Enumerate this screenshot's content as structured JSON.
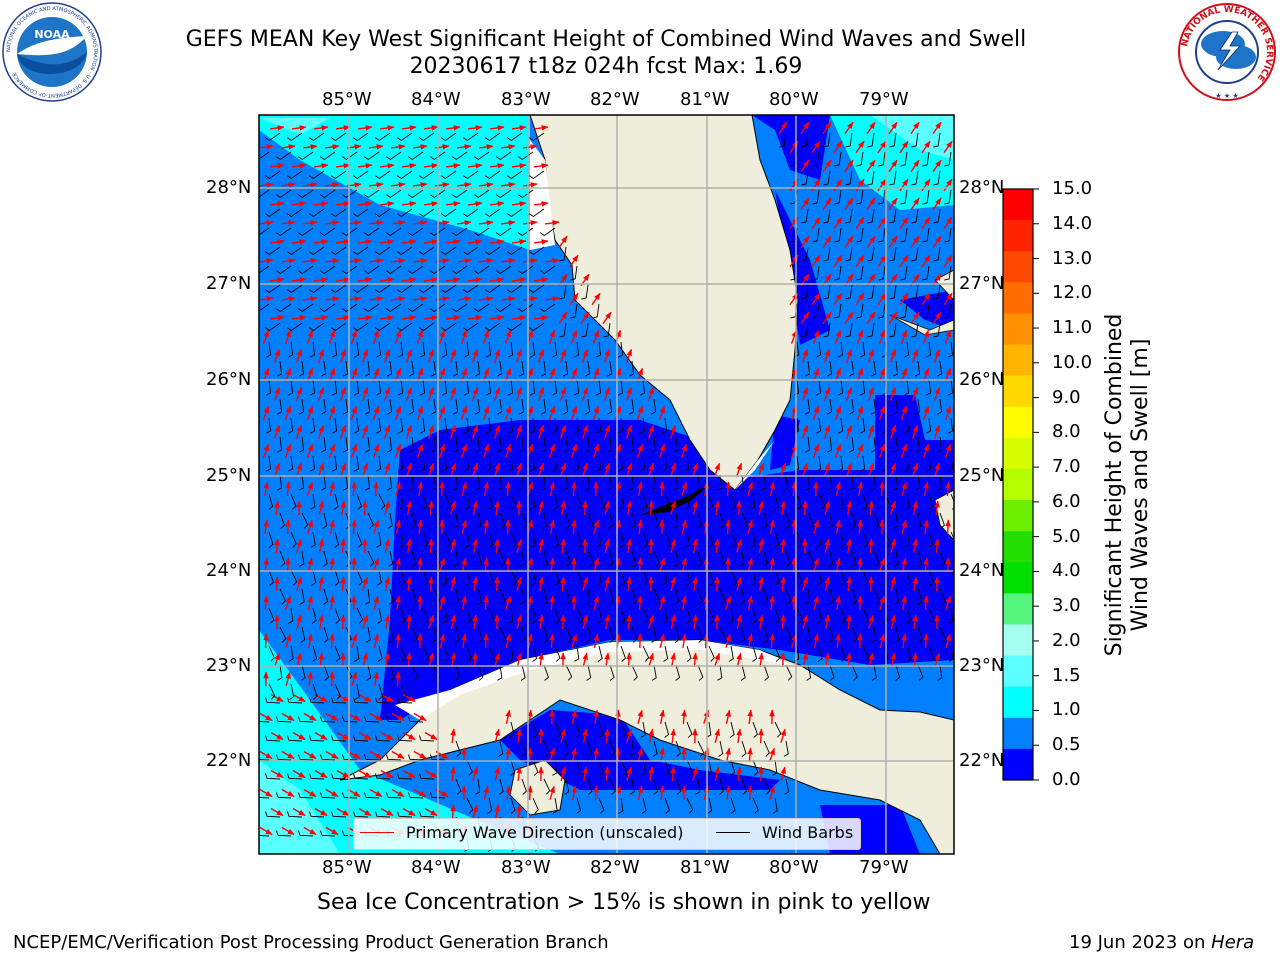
{
  "title_line1": "GEFS MEAN Key West Significant Height of Combined Wind Waves and Swell",
  "title_line2": "20230617 t18z 024h fcst   Max: 1.69",
  "logos": {
    "left": {
      "text": "NOAA",
      "ring": "NATIONAL OCEANIC AND ATMOSPHERIC ADMINISTRATION · U.S. DEPARTMENT OF COMMERCE"
    },
    "right": {
      "ring": "NATIONAL WEATHER SERVICE"
    }
  },
  "map": {
    "lon_labels": [
      "85°W",
      "84°W",
      "83°W",
      "82°W",
      "81°W",
      "80°W",
      "79°W"
    ],
    "lat_labels": [
      "28°N",
      "27°N",
      "26°N",
      "25°N",
      "24°N",
      "23°N",
      "22°N"
    ],
    "colors": {
      "land": "#efeedc",
      "grid": "#b0b0b0",
      "wave_arrow": "#ff0000",
      "barb": "#000000"
    }
  },
  "colorbar": {
    "label_line1": "Significant Height of Combined",
    "label_line2": "Wind Waves and Swell [m]",
    "ticks": [
      "15.0",
      "14.0",
      "13.0",
      "12.0",
      "11.0",
      "10.0",
      "9.0",
      "8.0",
      "7.0",
      "6.0",
      "5.0",
      "4.0",
      "3.0",
      "2.0",
      "1.5",
      "1.0",
      "0.5",
      "0.0"
    ],
    "colors_top_to_bottom": [
      "#ff0000",
      "#ff2400",
      "#ff4800",
      "#ff6c00",
      "#ff9000",
      "#ffb400",
      "#ffd800",
      "#fffc00",
      "#d8ff00",
      "#b4ff00",
      "#6cf000",
      "#24e000",
      "#00e000",
      "#55f57e",
      "#a6fff0",
      "#5bffff",
      "#00ffff",
      "#0080ff",
      "#0000ff"
    ]
  },
  "legend": {
    "wave": "Primary Wave Direction (unscaled)",
    "barb": "Wind Barbs"
  },
  "footer": "Sea Ice Concentration > 15% is shown in pink to yellow",
  "credits_left": "NCEP/EMC/Verification Post Processing Product Generation Branch",
  "credits_right_date": "19 Jun 2023 on ",
  "credits_right_host": "Hera"
}
